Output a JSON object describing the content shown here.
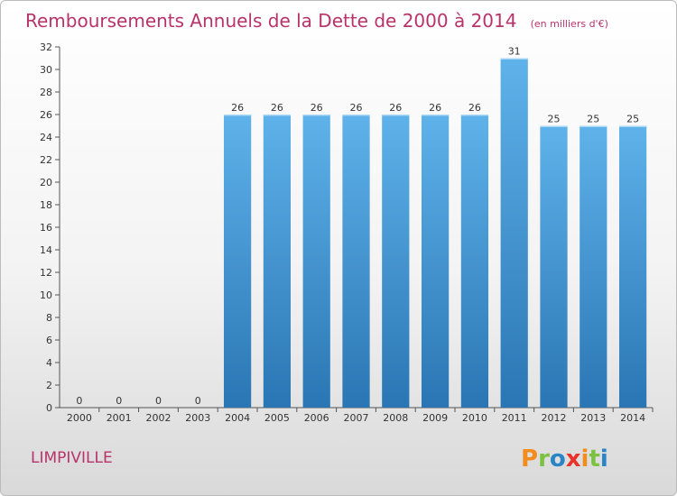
{
  "chart_data": {
    "type": "bar",
    "title": "Remboursements Annuels de la Dette de 2000 à 2014",
    "subtitle": "(en milliers d'€)",
    "categories": [
      "2000",
      "2001",
      "2002",
      "2003",
      "2004",
      "2005",
      "2006",
      "2007",
      "2008",
      "2009",
      "2010",
      "2011",
      "2012",
      "2013",
      "2014"
    ],
    "values": [
      0,
      0,
      0,
      0,
      26,
      26,
      26,
      26,
      26,
      26,
      26,
      31,
      25,
      25,
      25
    ],
    "xlabel": "",
    "ylabel": "",
    "ylim": [
      0,
      32
    ],
    "yticks": [
      0,
      2,
      4,
      6,
      8,
      10,
      12,
      14,
      16,
      18,
      20,
      22,
      24,
      26,
      28,
      30,
      32
    ],
    "grid": false,
    "bar_color_top": "#5fb2ea",
    "bar_color_bottom": "#2a76b4"
  },
  "footer": {
    "city": "LIMPIVILLE",
    "logo_text": "Proxiti"
  },
  "colors": {
    "title": "#b8336a",
    "logo_letters": [
      "#f28c1e",
      "#7cc242",
      "#2b84c6",
      "#e8332a",
      "#f28c1e",
      "#7cc242",
      "#2b84c6"
    ]
  }
}
